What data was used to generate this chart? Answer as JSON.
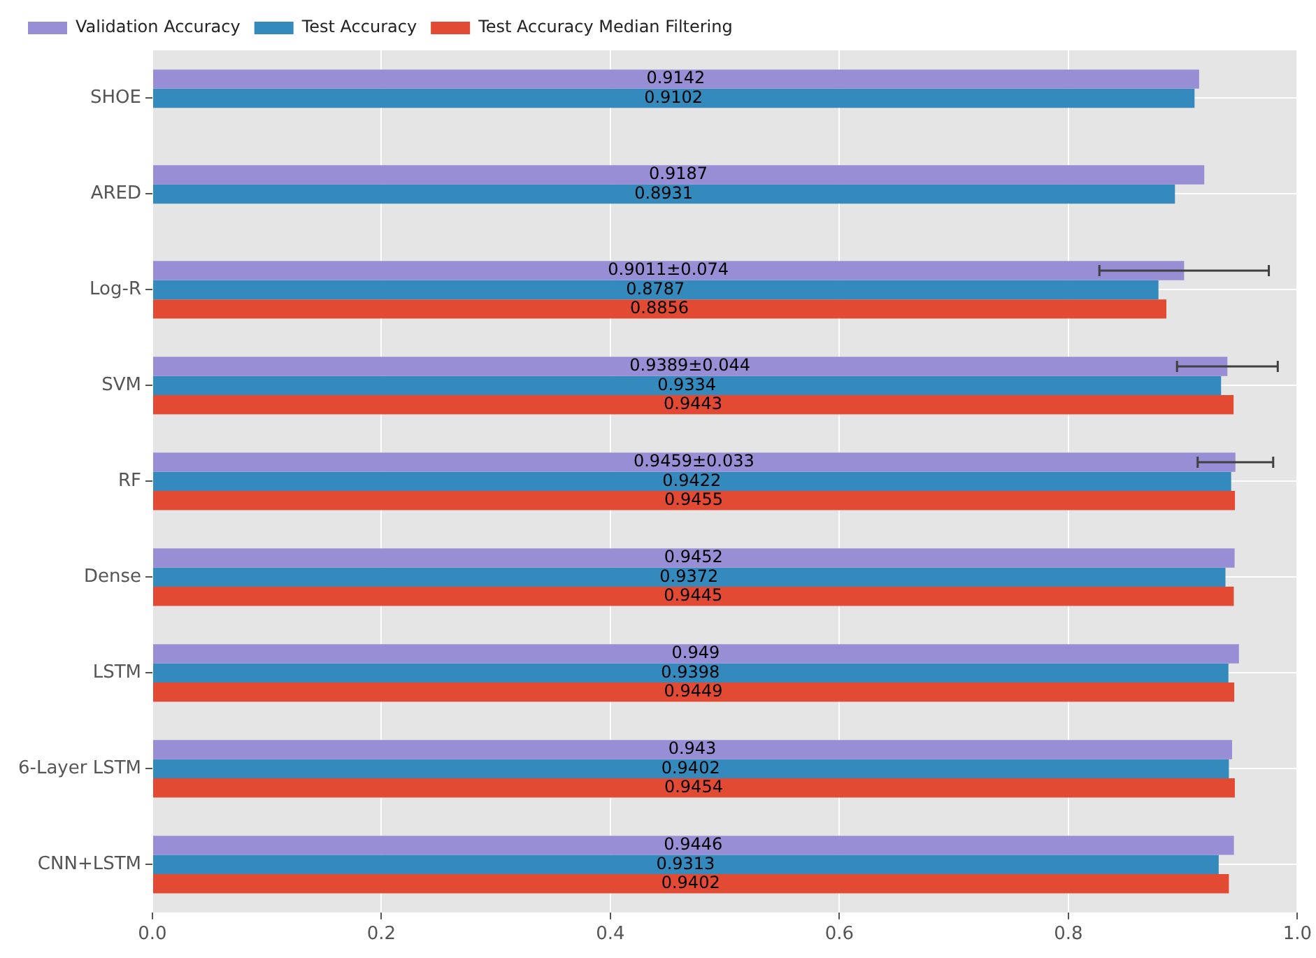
{
  "chart_data": {
    "type": "bar",
    "orientation": "horizontal",
    "categories": [
      "SHOE",
      "ARED",
      "Log-R",
      "SVM",
      "RF",
      "Dense",
      "LSTM",
      "6-Layer LSTM",
      "CNN+LSTM"
    ],
    "series": [
      {
        "name": "Validation Accuracy",
        "color": "#988ed5",
        "values": [
          0.9142,
          0.9187,
          0.9011,
          0.9389,
          0.9459,
          0.9452,
          0.949,
          0.943,
          0.9446
        ],
        "errors": [
          null,
          null,
          0.074,
          0.044,
          0.033,
          null,
          null,
          null,
          null
        ],
        "value_labels": [
          "0.9142",
          "0.9187",
          "0.9011±0.074",
          "0.9389±0.044",
          "0.9459±0.033",
          "0.9452",
          "0.949",
          "0.943",
          "0.9446"
        ]
      },
      {
        "name": "Test Accuracy",
        "color": "#348abd",
        "values": [
          0.9102,
          0.8931,
          0.8787,
          0.9334,
          0.9422,
          0.9372,
          0.9398,
          0.9402,
          0.9313
        ],
        "value_labels": [
          "0.9102",
          "0.8931",
          "0.8787",
          "0.9334",
          "0.9422",
          "0.9372",
          "0.9398",
          "0.9402",
          "0.9313"
        ]
      },
      {
        "name": "Test Accuracy Median Filtering",
        "color": "#e24a33",
        "values": [
          null,
          null,
          0.8856,
          0.9443,
          0.9455,
          0.9445,
          0.9449,
          0.9454,
          0.9402
        ],
        "value_labels": [
          null,
          null,
          "0.8856",
          "0.9443",
          "0.9455",
          "0.9445",
          "0.9449",
          "0.9454",
          "0.9402"
        ]
      }
    ],
    "xlim": [
      0,
      1
    ],
    "xticks": [
      {
        "value": 0,
        "label": "0.0"
      },
      {
        "value": 0.2,
        "label": "0.2"
      },
      {
        "value": 0.4,
        "label": "0.4"
      },
      {
        "value": 0.6,
        "label": "0.6"
      },
      {
        "value": 0.8,
        "label": "0.8"
      },
      {
        "value": 1,
        "label": "1.0"
      }
    ],
    "grid": true,
    "legend": "top left"
  }
}
